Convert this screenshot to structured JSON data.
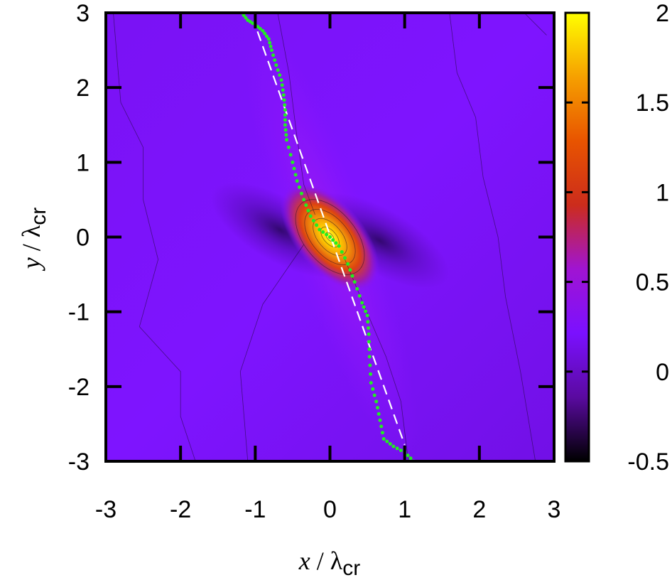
{
  "chart_data": {
    "type": "heatmap",
    "title": "",
    "x_range": [
      -3,
      3
    ],
    "y_range": [
      -3,
      3
    ],
    "x_ticks": [
      "-3",
      "-2",
      "-1",
      "0",
      "1",
      "2",
      "3"
    ],
    "y_ticks": [
      "-3",
      "-2",
      "-1",
      "0",
      "1",
      "2",
      "3"
    ],
    "xlabel": {
      "var": "x",
      "slash": " / ",
      "lambda": "λ",
      "sub": "cr"
    },
    "ylabel": {
      "var": "y",
      "slash": " / ",
      "lambda": "λ",
      "sub": "cr"
    },
    "colorbar": {
      "range": [
        -0.5,
        2
      ],
      "ticks": [
        "-0.5",
        "0",
        "0.5",
        "1",
        "1.5",
        "2"
      ],
      "tick_values": [
        -0.5,
        0,
        0.5,
        1,
        1.5,
        2
      ],
      "colormap": [
        "#000000",
        "#5a0aa0",
        "#7b10ff",
        "#a014d2",
        "#cc2c1c",
        "#e85400",
        "#f6a000",
        "#ffff00"
      ]
    },
    "background_value": 0.05,
    "peak": {
      "x": 0,
      "y": 0,
      "value": 2.0
    },
    "dashed_line": {
      "color": "#ffffff",
      "points": [
        [
          -0.97,
          2.75
        ],
        [
          1.0,
          -2.78
        ]
      ]
    },
    "dotted_curve": {
      "color": "#22ee22",
      "points": [
        [
          -1.18,
          3.0
        ],
        [
          -1.1,
          2.9
        ],
        [
          -1.0,
          2.84
        ],
        [
          -0.9,
          2.76
        ],
        [
          -0.82,
          2.65
        ],
        [
          -0.78,
          2.5
        ],
        [
          -0.72,
          2.3
        ],
        [
          -0.65,
          2.1
        ],
        [
          -0.62,
          1.9
        ],
        [
          -0.6,
          1.7
        ],
        [
          -0.6,
          1.5
        ],
        [
          -0.58,
          1.3
        ],
        [
          -0.5,
          1.0
        ],
        [
          -0.44,
          0.75
        ],
        [
          -0.35,
          0.5
        ],
        [
          -0.26,
          0.28
        ],
        [
          -0.14,
          0.1
        ],
        [
          0.0,
          0.0
        ],
        [
          0.12,
          -0.12
        ],
        [
          0.24,
          -0.36
        ],
        [
          0.33,
          -0.6
        ],
        [
          0.43,
          -0.88
        ],
        [
          0.5,
          -1.05
        ],
        [
          0.52,
          -1.3
        ],
        [
          0.53,
          -1.6
        ],
        [
          0.55,
          -1.95
        ],
        [
          0.62,
          -2.2
        ],
        [
          0.67,
          -2.45
        ],
        [
          0.72,
          -2.7
        ],
        [
          0.85,
          -2.8
        ],
        [
          1.0,
          -2.88
        ],
        [
          1.12,
          -3.0
        ]
      ]
    }
  }
}
